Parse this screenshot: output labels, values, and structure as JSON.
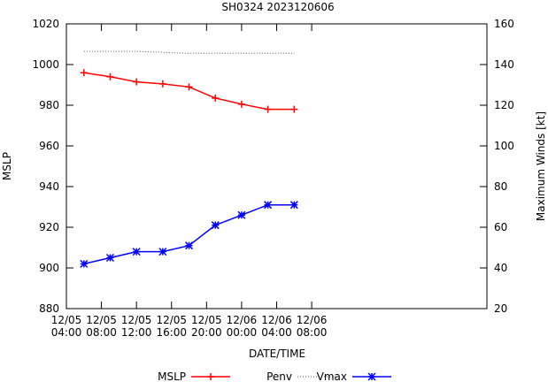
{
  "chart_data": {
    "type": "line",
    "title": "SH0324 2023120606",
    "xlabel": "DATE/TIME",
    "ylabel_left": "MSLP",
    "ylabel_right": "Maximum Winds [kt]",
    "x_unit": "hours since 12/05 04:00",
    "xlim": [
      0,
      48
    ],
    "ylim_left": [
      880,
      1020
    ],
    "ylim_right": [
      20,
      160
    ],
    "x_ticks": [
      {
        "x": 0,
        "line1": "12/05",
        "line2": "04:00"
      },
      {
        "x": 4,
        "line1": "12/05",
        "line2": "08:00"
      },
      {
        "x": 8,
        "line1": "12/05",
        "line2": "12:00"
      },
      {
        "x": 12,
        "line1": "12/05",
        "line2": "16:00"
      },
      {
        "x": 16,
        "line1": "12/05",
        "line2": "20:00"
      },
      {
        "x": 20,
        "line1": "12/06",
        "line2": "00:00"
      },
      {
        "x": 24,
        "line1": "12/06",
        "line2": "04:00"
      },
      {
        "x": 28,
        "line1": "12/06",
        "line2": "08:00"
      }
    ],
    "y_ticks_left": [
      880,
      900,
      920,
      940,
      960,
      980,
      1000,
      1020
    ],
    "y_ticks_right": [
      20,
      40,
      60,
      80,
      100,
      120,
      140,
      160
    ],
    "series": [
      {
        "name": "MSLP",
        "axis": "left",
        "color": "#ff0000",
        "marker": "plus",
        "x": [
          2,
          5,
          8,
          11,
          14,
          17,
          20,
          23,
          26
        ],
        "values": [
          996,
          994,
          991.5,
          990.5,
          989,
          983.5,
          980.5,
          978,
          978
        ]
      },
      {
        "name": "Penv",
        "axis": "left",
        "color": "#555555",
        "marker": "none",
        "dotted": true,
        "x": [
          2,
          8,
          14,
          20,
          26
        ],
        "values": [
          1006.5,
          1006.5,
          1005.5,
          1005.5,
          1005.5
        ]
      },
      {
        "name": "Vmax",
        "axis": "right",
        "color": "#0000ff",
        "marker": "star",
        "x": [
          2,
          5,
          8,
          11,
          14,
          17,
          20,
          23,
          26
        ],
        "values": [
          42,
          45,
          48,
          48,
          51,
          61,
          66,
          71,
          71
        ]
      }
    ],
    "legend_position": "bottom"
  }
}
